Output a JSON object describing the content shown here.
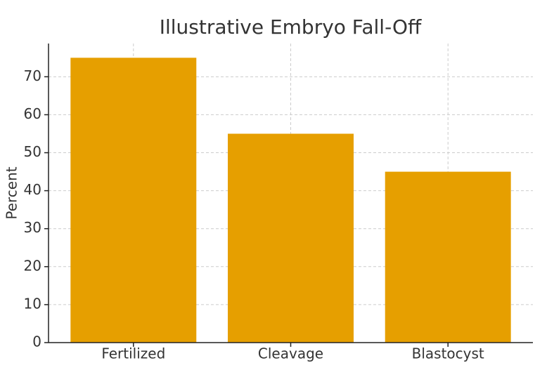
{
  "chart_data": {
    "type": "bar",
    "title": "Illustrative Embryo Fall-Off",
    "ylabel": "Percent",
    "categories": [
      "Fertilized",
      "Cleavage",
      "Blastocyst"
    ],
    "values": [
      75,
      55,
      45
    ],
    "color": "#e69f00",
    "ylim": [
      0,
      78.75
    ],
    "yticks": [
      0,
      10,
      20,
      30,
      40,
      50,
      60,
      70
    ],
    "grid": true
  }
}
